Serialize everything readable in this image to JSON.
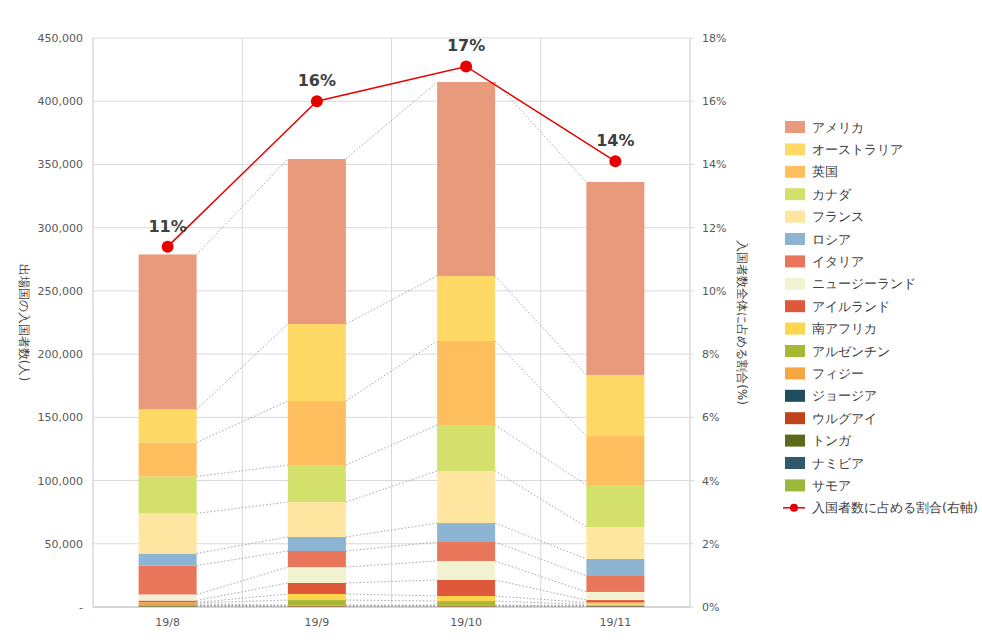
{
  "chart_data": {
    "type": "bar",
    "stacked": true,
    "grid": true,
    "legend": "right",
    "y_label": "出場国の入国者数(人)",
    "y2_label": "入国者数全体に占める割合(%)",
    "categories": [
      "19/8",
      "19/9",
      "19/10",
      "19/11"
    ],
    "ylim": [
      0,
      450000
    ],
    "yticks": [
      {
        "value": 0,
        "label": "-"
      },
      {
        "value": 50000,
        "label": "50,000"
      },
      {
        "value": 100000,
        "label": "100,000"
      },
      {
        "value": 150000,
        "label": "150,000"
      },
      {
        "value": 200000,
        "label": "200,000"
      },
      {
        "value": 250000,
        "label": "250,000"
      },
      {
        "value": 300000,
        "label": "300,000"
      },
      {
        "value": 350000,
        "label": "350,000"
      },
      {
        "value": 400000,
        "label": "400,000"
      },
      {
        "value": 450000,
        "label": "450,000"
      }
    ],
    "y2lim": [
      0,
      18
    ],
    "y2ticks": [
      {
        "value": 0,
        "label": "0%"
      },
      {
        "value": 2,
        "label": "2%"
      },
      {
        "value": 4,
        "label": "4%"
      },
      {
        "value": 6,
        "label": "6%"
      },
      {
        "value": 8,
        "label": "8%"
      },
      {
        "value": 10,
        "label": "10%"
      },
      {
        "value": 12,
        "label": "12%"
      },
      {
        "value": 14,
        "label": "14%"
      },
      {
        "value": 16,
        "label": "16%"
      },
      {
        "value": 18,
        "label": "18%"
      }
    ],
    "series": [
      {
        "name": "アメリカ",
        "type": "bar",
        "color": "#EA9A7C",
        "values": [
          122600,
          130500,
          153400,
          152600
        ]
      },
      {
        "name": "オーストラリア",
        "type": "bar",
        "color": "#FFD966",
        "values": [
          26100,
          60900,
          51400,
          48300
        ]
      },
      {
        "name": "英国",
        "type": "bar",
        "color": "#FFBF5F",
        "values": [
          26900,
          50600,
          66500,
          38700
        ]
      },
      {
        "name": "カナダ",
        "type": "bar",
        "color": "#D4E06C",
        "values": [
          29200,
          29300,
          36300,
          33200
        ]
      },
      {
        "name": "フランス",
        "type": "bar",
        "color": "#FFE6A0",
        "values": [
          31700,
          27600,
          41200,
          25300
        ]
      },
      {
        "name": "ロシア",
        "type": "bar",
        "color": "#8DB4D2",
        "values": [
          9500,
          11100,
          15000,
          13500
        ]
      },
      {
        "name": "イタリア",
        "type": "bar",
        "color": "#E8765A",
        "values": [
          22900,
          12700,
          15000,
          12600
        ]
      },
      {
        "name": "ニュージーランド",
        "type": "bar",
        "color": "#F0F2D0",
        "values": [
          4800,
          12600,
          15000,
          6400
        ]
      },
      {
        "name": "アイルランド",
        "type": "bar",
        "color": "#E0583A",
        "values": [
          1500,
          8700,
          12700,
          2000
        ]
      },
      {
        "name": "南アフリカ",
        "type": "bar",
        "color": "#FFD54F",
        "values": [
          500,
          4800,
          4000,
          1500
        ]
      },
      {
        "name": "アルゼンチン",
        "type": "bar",
        "color": "#A8B832",
        "values": [
          800,
          4000,
          3200,
          700
        ]
      },
      {
        "name": "フィジー",
        "type": "bar",
        "color": "#F7A540",
        "values": [
          1000,
          500,
          400,
          500
        ]
      },
      {
        "name": "ジョージア",
        "type": "bar",
        "color": "#1F4E5F",
        "values": [
          300,
          200,
          300,
          200
        ]
      },
      {
        "name": "ウルグアイ",
        "type": "bar",
        "color": "#C0441A",
        "values": [
          300,
          300,
          300,
          300
        ]
      },
      {
        "name": "トンガ",
        "type": "bar",
        "color": "#5A6A1A",
        "values": [
          200,
          200,
          200,
          100
        ]
      },
      {
        "name": "ナミビア",
        "type": "bar",
        "color": "#2E5A6A",
        "values": [
          200,
          100,
          100,
          100
        ]
      },
      {
        "name": "サモア",
        "type": "bar",
        "color": "#9AB83A",
        "values": [
          300,
          200,
          200,
          100
        ]
      },
      {
        "name": "入国者数に占める割合(右軸)",
        "type": "line",
        "axis": "y2",
        "color": "#E60000",
        "marker": "circle",
        "line_style": "solid",
        "data_labels": true,
        "values": [
          11.4,
          16.0,
          17.1,
          14.1
        ],
        "value_labels": [
          "11%",
          "16%",
          "17%",
          "14%"
        ]
      }
    ]
  }
}
